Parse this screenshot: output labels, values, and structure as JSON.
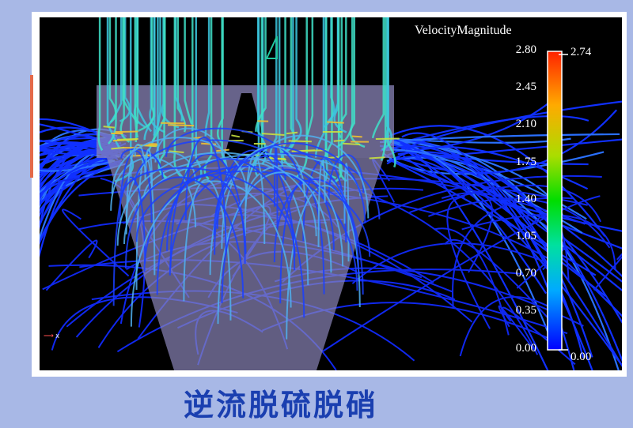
{
  "visualization": {
    "type": "streamline velocity field",
    "axis_label": "x",
    "colorbar": {
      "title": "VelocityMagnitude",
      "ticks": [
        "2.80",
        "2.45",
        "2.10",
        "1.75",
        "1.40",
        "1.05",
        "0.70",
        "0.35",
        "0.00"
      ],
      "range_max": "2.74",
      "range_min": "0.00",
      "colormap": [
        "#0000ff",
        "#00aaff",
        "#00e0a0",
        "#00dd00",
        "#aadd00",
        "#ffaa00",
        "#ff2200"
      ]
    }
  },
  "caption": "逆流脱硫脱硝",
  "colors": {
    "background": "#a8b8e6",
    "caption": "#1a3fb0"
  }
}
